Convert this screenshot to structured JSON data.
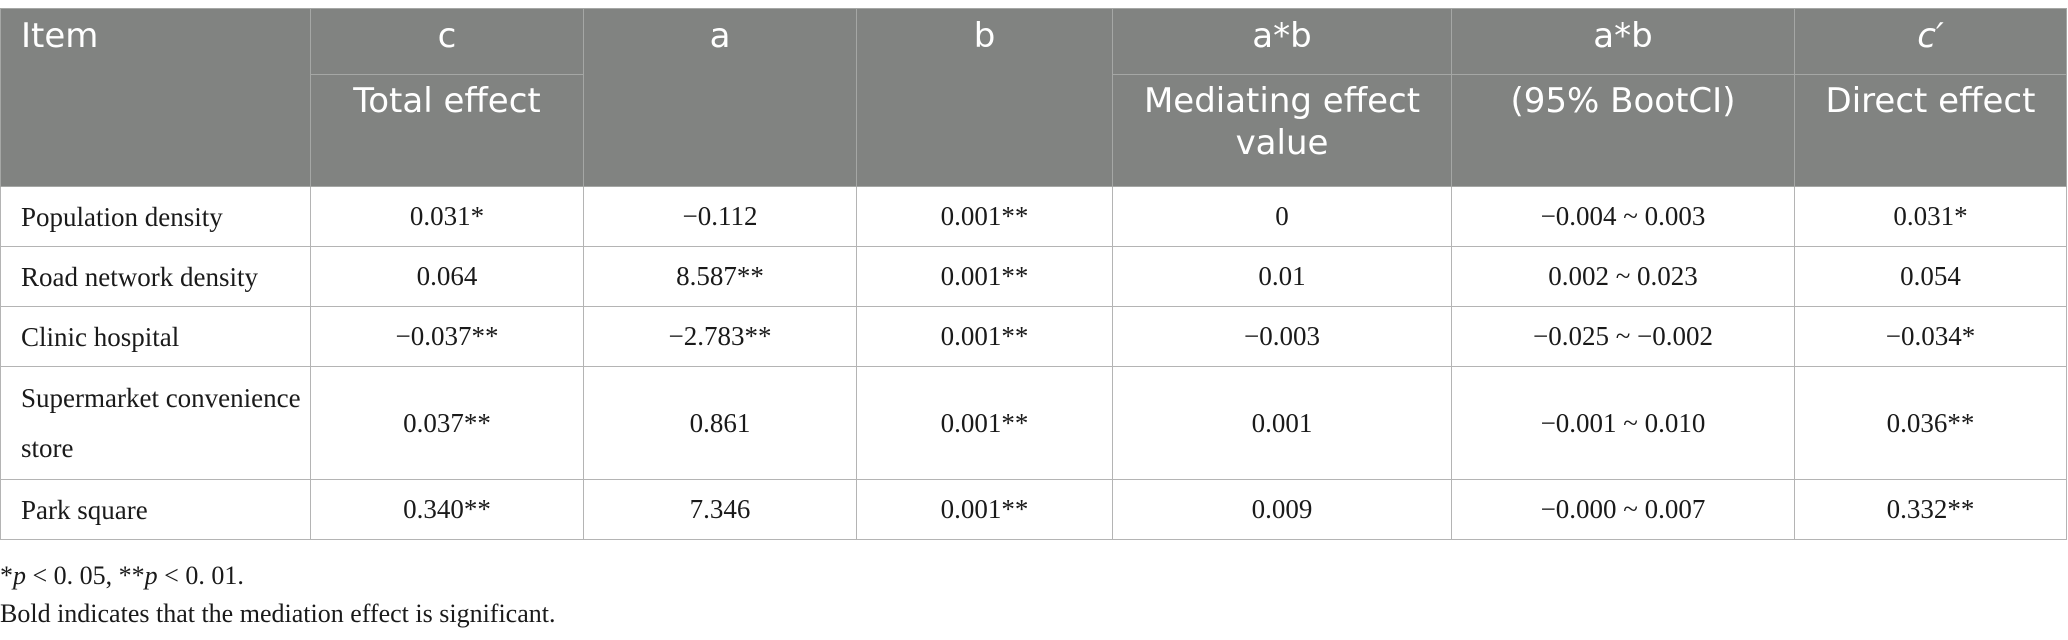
{
  "table": {
    "header_row1": [
      "Item",
      "c",
      "a",
      "b",
      "a*b",
      "a*b",
      "c′"
    ],
    "header_row2": [
      "Total effect",
      "",
      "",
      "Mediating effect value",
      "(95% BootCI)",
      "Direct effect"
    ],
    "rows": [
      [
        "Population density",
        "0.031*",
        "−0.112",
        "0.001**",
        "0",
        "−0.004 ~ 0.003",
        "0.031*"
      ],
      [
        "Road network density",
        "0.064",
        "8.587**",
        "0.001**",
        "0.01",
        "0.002 ~ 0.023",
        "0.054"
      ],
      [
        "Clinic hospital",
        "−0.037**",
        "−2.783**",
        "0.001**",
        "−0.003",
        "−0.025 ~ −0.002",
        "−0.034*"
      ],
      [
        "Supermarket convenience store",
        "0.037**",
        "0.861",
        "0.001**",
        "0.001",
        "−0.001 ~ 0.010",
        "0.036**"
      ],
      [
        "Park square",
        "0.340**",
        "7.346",
        "0.001**",
        "0.009",
        "−0.000 ~ 0.007",
        "0.332**"
      ]
    ]
  },
  "footnotes": {
    "significance_star1": "*",
    "significance_p1": "p",
    "significance_rest1": " < 0. 05, **",
    "significance_p2": "p",
    "significance_rest2": " < 0. 01.",
    "bold_note": "Bold indicates that the mediation effect is significant."
  },
  "colors": {
    "header_background": "#818381",
    "header_text": "#ffffff",
    "grid_line": "#b4b4b4"
  }
}
